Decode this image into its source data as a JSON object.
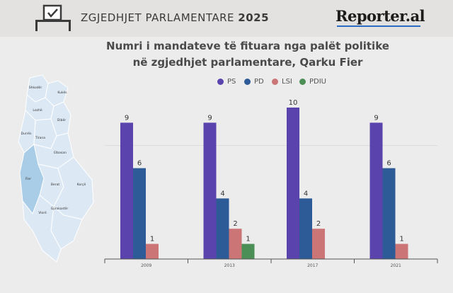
{
  "header": {
    "title_prefix": "ZGJEDHJET PARLAMENTARE",
    "title_year": "2025",
    "logo": "Reporter.al"
  },
  "title_lines": [
    "Numri i mandateve të fituara nga palët politike",
    "në zgjedhjet parlamentare, Qarku Fier"
  ],
  "map": {
    "highlight_color": "#a9cde6",
    "region_color": "#dce9f5",
    "labels": [
      "Shkodër",
      "Kukës",
      "Lezhë",
      "Dibër",
      "Durrës",
      "Tirana",
      "Elbasan",
      "Fier",
      "Berat",
      "Korçë",
      "Gjirokastër",
      "Vlorë"
    ],
    "highlighted": "Fier"
  },
  "chart_data": {
    "type": "bar",
    "categories": [
      "2009",
      "2013",
      "2017",
      "2021"
    ],
    "series": [
      {
        "name": "PS",
        "color": "#5b43ad",
        "values": [
          9,
          9,
          10,
          9
        ]
      },
      {
        "name": "PD",
        "color": "#2c5b97",
        "values": [
          6,
          4,
          4,
          6
        ]
      },
      {
        "name": "LSI",
        "color": "#cc7577",
        "values": [
          1,
          2,
          2,
          1
        ]
      },
      {
        "name": "PDIU",
        "color": "#4b8f56",
        "values": [
          null,
          1,
          null,
          null
        ]
      }
    ],
    "ylim": [
      0,
      10
    ],
    "legend_position": "top"
  }
}
